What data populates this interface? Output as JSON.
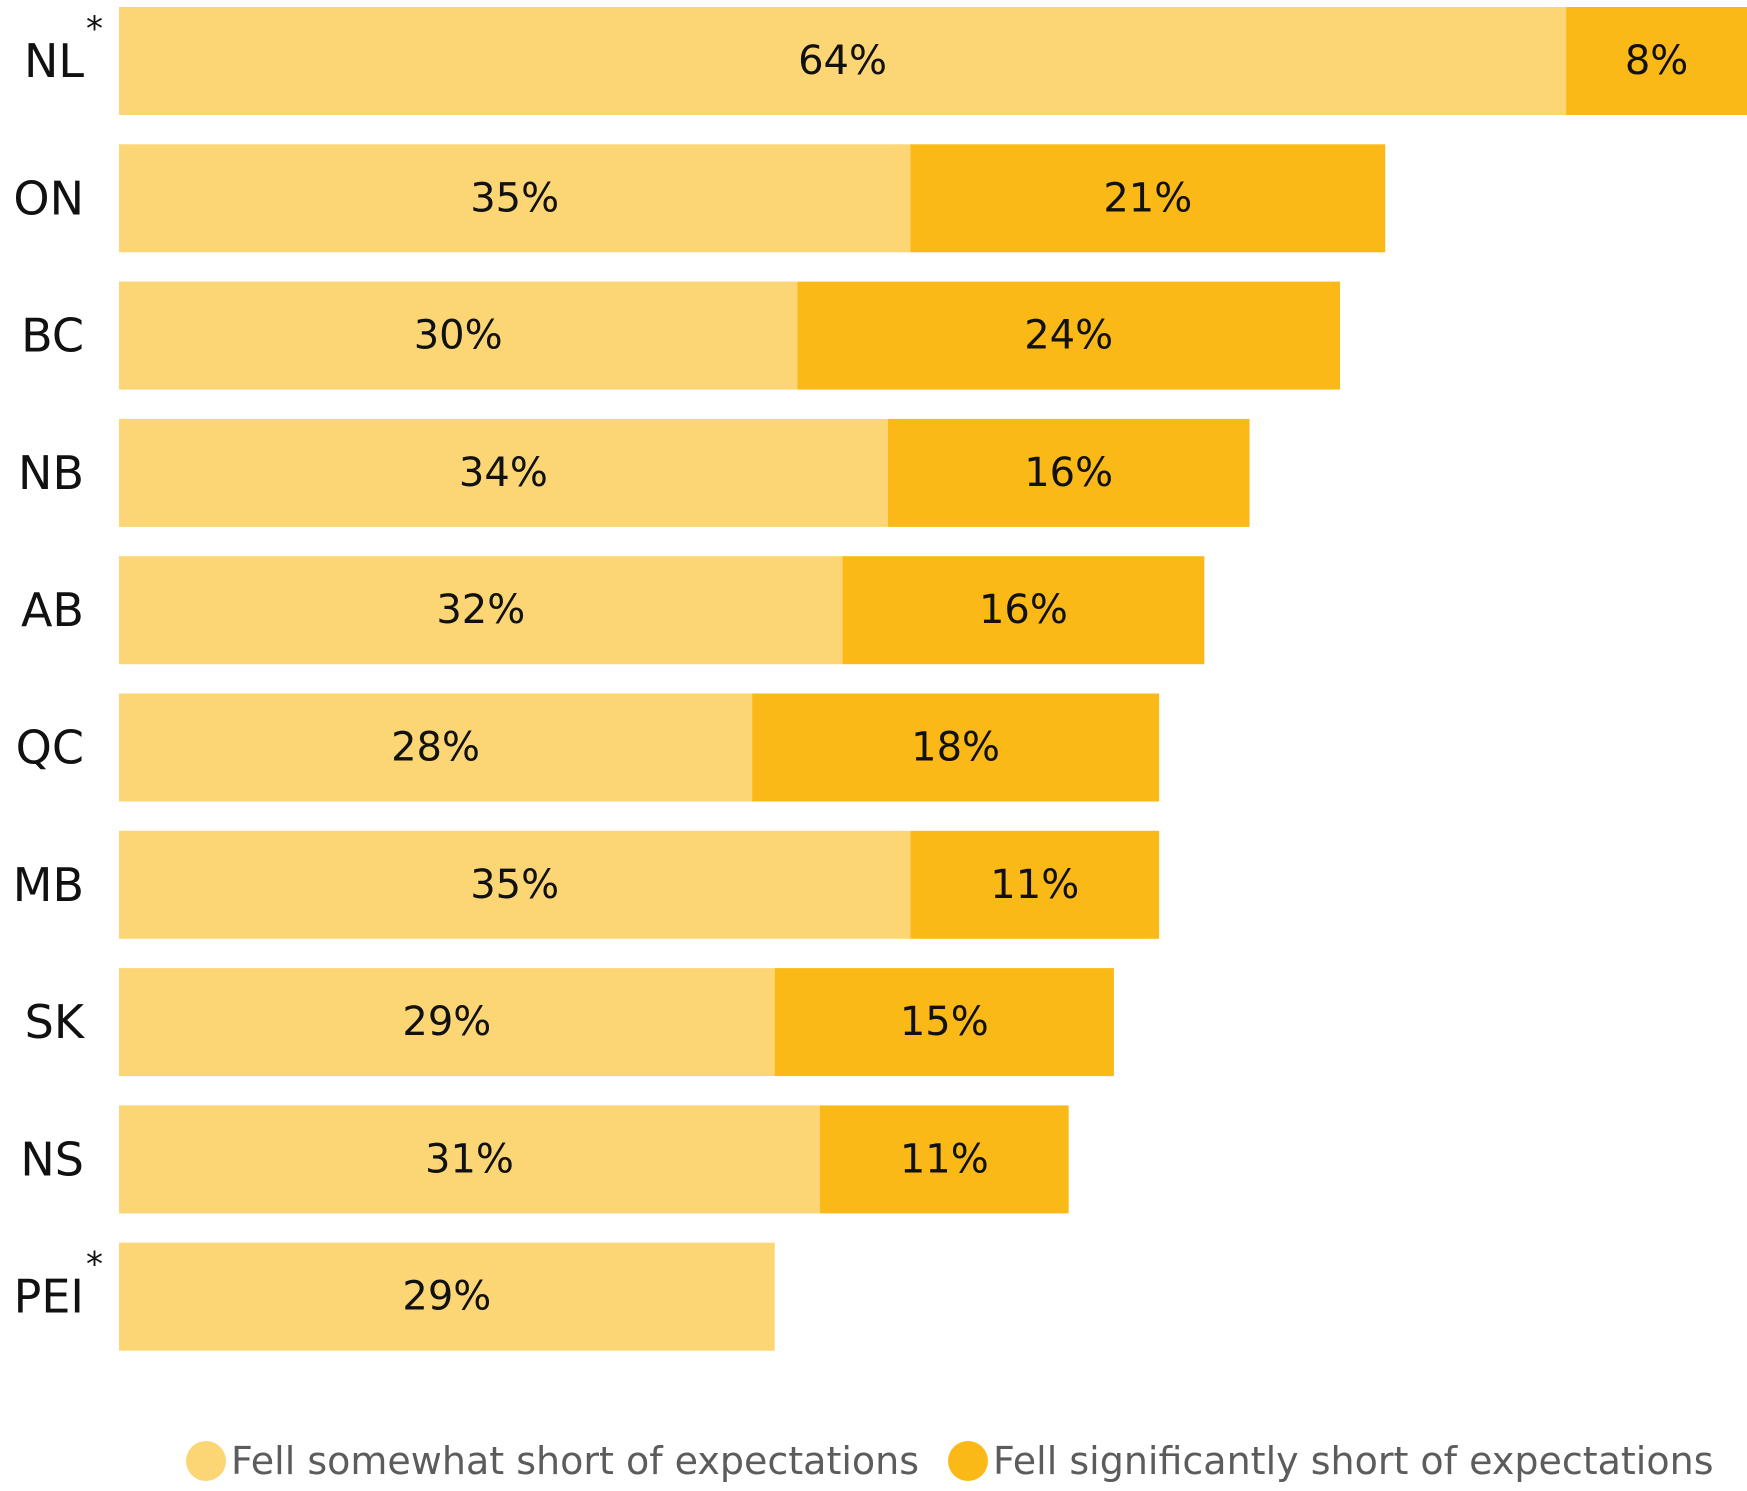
{
  "chart_data": {
    "type": "bar",
    "orientation": "horizontal",
    "stacked": true,
    "categories": [
      "NL",
      "ON",
      "BC",
      "NB",
      "AB",
      "QC",
      "MB",
      "SK",
      "NS",
      "PEI"
    ],
    "category_markers": [
      "*",
      "",
      "",
      "",
      "",
      "",
      "",
      "",
      "",
      "*"
    ],
    "series": [
      {
        "name": "Fell somewhat short of expectations",
        "color": "#fcd675",
        "values": [
          64,
          35,
          30,
          34,
          32,
          28,
          35,
          29,
          31,
          29
        ],
        "labels": [
          "64%",
          "35%",
          "30%",
          "34%",
          "32%",
          "28%",
          "35%",
          "29%",
          "31%",
          "29%"
        ]
      },
      {
        "name": "Fell significantly short of expectations",
        "color": "#fbb917",
        "values": [
          8,
          21,
          24,
          16,
          16,
          18,
          11,
          15,
          11,
          null
        ],
        "labels": [
          "8%",
          "21%",
          "24%",
          "16%",
          "16%",
          "18%",
          "11%",
          "15%",
          "11%",
          ""
        ]
      }
    ],
    "xlim": [
      0,
      72
    ],
    "grid": false,
    "legend_position": "bottom-right",
    "title": "",
    "xlabel": "",
    "ylabel": ""
  }
}
